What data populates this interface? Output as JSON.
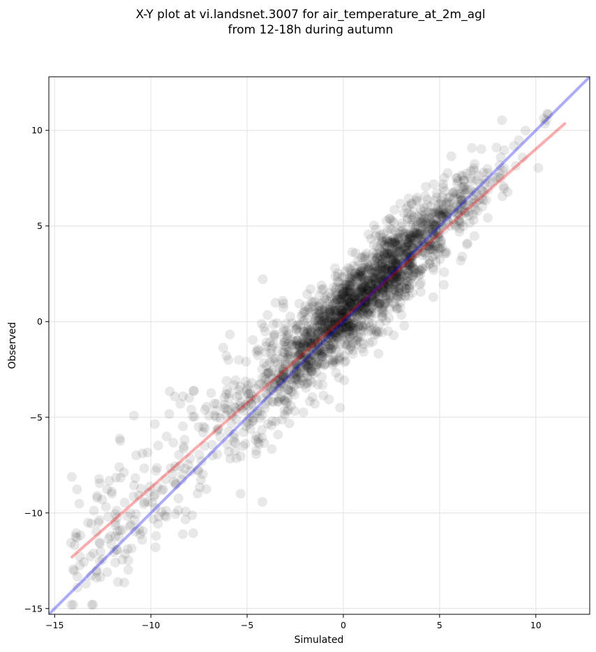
{
  "chart_data": {
    "type": "scatter",
    "title_line1": "X-Y plot at vi.landsnet.3007 for air_temperature_at_2m_agl",
    "title_line2": "from 12-18h during autumn",
    "xlabel": "Simulated",
    "ylabel": "Observed",
    "xlim": [
      -15.3,
      12.8
    ],
    "ylim": [
      -15.3,
      12.8
    ],
    "x_ticks": [
      -15,
      -10,
      -5,
      0,
      5,
      10
    ],
    "y_ticks": [
      -15,
      -10,
      -5,
      0,
      5,
      10
    ],
    "x_tick_labels": [
      "−15",
      "−10",
      "−5",
      "0",
      "5",
      "10"
    ],
    "y_tick_labels": [
      "−15",
      "−10",
      "−5",
      "0",
      "5",
      "10"
    ],
    "grid": true,
    "point_color": "#000000",
    "point_opacity": 0.09,
    "point_count": 2200,
    "identity_line": {
      "color": "#0000ff",
      "x": [
        -15.3,
        12.8
      ],
      "y": [
        -15.3,
        12.8
      ]
    },
    "fit_line": {
      "color": "#ff0000",
      "x": [
        -14.1,
        11.5
      ],
      "y": [
        -12.3,
        10.35
      ]
    },
    "cloud_sampling": {
      "x_mean": 1.1,
      "x_sd": 2.9,
      "slope": 0.93,
      "intercept": 0.4,
      "residual_sd": 1.15,
      "tail_min": -14.2,
      "tail_max": -2.5,
      "tail_share": 0.12
    }
  }
}
